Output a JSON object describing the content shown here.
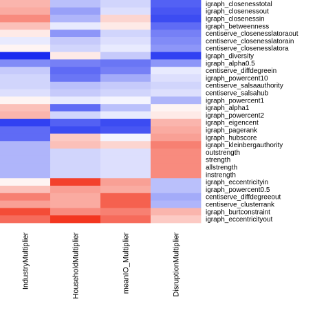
{
  "chart_data": {
    "type": "heatmap",
    "title": "",
    "xlabel": "",
    "ylabel": "",
    "columns": [
      "IndustryMultiplier",
      "HouseholdMultiplier",
      "meanIO_Multiplier",
      "DisruptionMultiplier"
    ],
    "rows": [
      "igraph_closenesstotal",
      "igraph_closenessout",
      "igraph_closenessin",
      "igraph_betweenness",
      "centiserve_closenesslatoraout",
      "centiserve_closenesslatorain",
      "centiserve_closenesslatora",
      "igraph_diversity",
      "igraph_alpha0.5",
      "centiserve_diffdegreein",
      "igraph_powercent10",
      "centiserve_salsaauthority",
      "centiserve_salsahub",
      "igraph_powercent1",
      "igraph_alpha1",
      "igraph_powercent2",
      "igraph_eigencent",
      "igraph_pagerank",
      "igraph_hubscore",
      "igraph_kleinbergauthority",
      "outstrength",
      "strength",
      "allstrength",
      "instrength",
      "igraph_eccentricityin",
      "igraph_powercent0.5",
      "centiserve_diffdegreeout",
      "centiserve_clusterrank",
      "igraph_burtconstraint",
      "igraph_eccentricityout"
    ],
    "values": [
      [
        0.35,
        -0.3,
        -0.2,
        -0.75
      ],
      [
        0.4,
        -0.45,
        -0.15,
        -0.8
      ],
      [
        0.55,
        -0.35,
        0.2,
        -0.85
      ],
      [
        0.3,
        -0.1,
        0.1,
        -0.7
      ],
      [
        0.1,
        -0.5,
        -0.2,
        -0.6
      ],
      [
        -0.1,
        -0.25,
        -0.15,
        -0.55
      ],
      [
        0.05,
        -0.2,
        -0.1,
        -0.5
      ],
      [
        -1.0,
        0.1,
        -0.25,
        -0.9
      ],
      [
        -0.55,
        -0.6,
        -0.65,
        -0.5
      ],
      [
        -0.25,
        -0.7,
        -0.6,
        -0.1
      ],
      [
        -0.2,
        -0.65,
        -0.4,
        -0.15
      ],
      [
        -0.2,
        -0.3,
        -0.25,
        -0.2
      ],
      [
        -0.15,
        -0.25,
        -0.2,
        -0.15
      ],
      [
        0.05,
        -0.1,
        -0.05,
        -0.35
      ],
      [
        0.3,
        -0.7,
        -0.3,
        0.05
      ],
      [
        0.35,
        -0.2,
        -0.1,
        0.1
      ],
      [
        -0.9,
        -0.75,
        -0.85,
        0.35
      ],
      [
        -0.7,
        -0.85,
        -0.8,
        0.4
      ],
      [
        -0.7,
        0.25,
        -0.05,
        0.45
      ],
      [
        -0.35,
        0.3,
        0.2,
        0.6
      ],
      [
        -0.35,
        -0.2,
        -0.15,
        0.55
      ],
      [
        -0.35,
        -0.2,
        -0.15,
        0.55
      ],
      [
        -0.35,
        -0.2,
        -0.15,
        0.55
      ],
      [
        -0.35,
        -0.2,
        -0.15,
        0.55
      ],
      [
        0.05,
        0.9,
        0.45,
        -0.3
      ],
      [
        0.3,
        0.45,
        0.4,
        -0.3
      ],
      [
        0.6,
        0.4,
        0.75,
        -0.4
      ],
      [
        0.45,
        0.4,
        0.75,
        -0.35
      ],
      [
        0.85,
        0.55,
        0.6,
        0.35
      ],
      [
        0.7,
        0.95,
        0.7,
        0.25
      ]
    ],
    "color_scale": {
      "low": "#1a2cf0",
      "mid": "#ffffff",
      "high": "#f22c14"
    },
    "value_range": [
      -1,
      1
    ],
    "legend": "none",
    "grid": false
  }
}
